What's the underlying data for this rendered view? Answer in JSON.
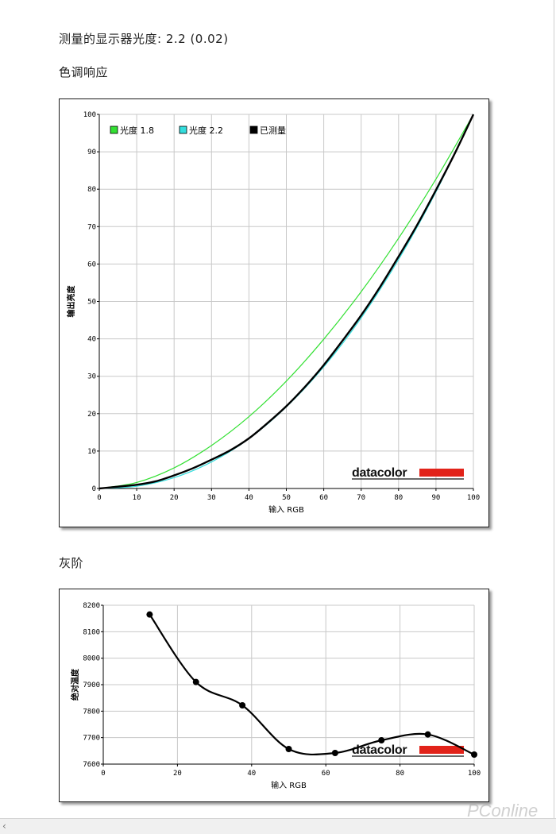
{
  "page": {
    "gamma_heading": "测量的显示器光度: 2.2 (0.02)",
    "tone_heading": "色调响应",
    "gray_heading": "灰阶",
    "watermark": "PConline",
    "scroll_left_icon": "scroll-left-arrow-icon",
    "logo_text": "datacolor",
    "logo_bar_color": "#e2231a"
  },
  "chart_data": [
    {
      "type": "line",
      "title": "",
      "xlabel": "输入 RGB",
      "ylabel": "输出亮度",
      "xlim": [
        0,
        100
      ],
      "ylim": [
        0,
        100
      ],
      "xticks": [
        0,
        10,
        20,
        30,
        40,
        50,
        60,
        70,
        80,
        90,
        100
      ],
      "yticks": [
        0,
        10,
        20,
        30,
        40,
        50,
        60,
        70,
        80,
        90,
        100
      ],
      "grid": true,
      "legend": "top-left",
      "series": [
        {
          "name": "光度 1.8",
          "color": "#33e033",
          "x": [
            0,
            10,
            20,
            30,
            40,
            50,
            60,
            70,
            80,
            90,
            100
          ],
          "values": [
            0,
            1.6,
            5.5,
            11.5,
            19.2,
            28.7,
            39.9,
            52.6,
            66.9,
            82.7,
            100
          ]
        },
        {
          "name": "光度 2.2",
          "color": "#33dddd",
          "x": [
            0,
            10,
            20,
            30,
            40,
            50,
            60,
            70,
            80,
            90,
            100
          ],
          "values": [
            0,
            0.6,
            2.9,
            7.1,
            13.3,
            21.8,
            32.5,
            45.6,
            61.2,
            79.3,
            100
          ]
        },
        {
          "name": "已测量",
          "color": "#000000",
          "x": [
            0,
            5,
            10,
            15,
            20,
            25,
            30,
            35,
            40,
            45,
            50,
            55,
            60,
            65,
            70,
            75,
            80,
            85,
            90,
            95,
            100
          ],
          "values": [
            0,
            0.5,
            1.0,
            1.9,
            3.5,
            5.4,
            7.7,
            10.2,
            13.4,
            17.5,
            22.0,
            27.2,
            33.0,
            39.5,
            46.3,
            53.8,
            62.0,
            70.5,
            79.8,
            89.5,
            100
          ]
        }
      ]
    },
    {
      "type": "line",
      "title": "",
      "xlabel": "输入 RGB",
      "ylabel": "绝对温度",
      "xlim": [
        0,
        100
      ],
      "ylim": [
        7600,
        8200
      ],
      "xticks": [
        0,
        20,
        40,
        60,
        80,
        100
      ],
      "yticks": [
        7600,
        7700,
        7800,
        7900,
        8000,
        8100,
        8200
      ],
      "grid": true,
      "series": [
        {
          "color": "#000000",
          "x": [
            12.5,
            25,
            37.5,
            50,
            62.5,
            75,
            87.5,
            100
          ],
          "values": [
            8165,
            7910,
            7822,
            7657,
            7642,
            7690,
            7712,
            7636
          ]
        }
      ]
    }
  ]
}
